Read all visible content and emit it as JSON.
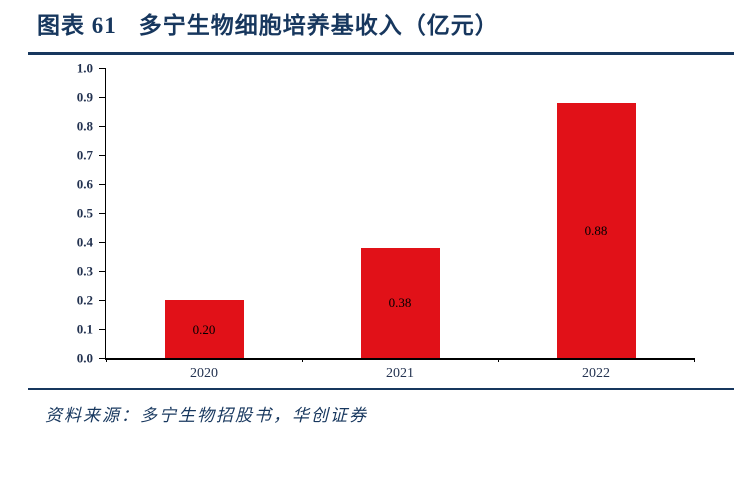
{
  "header": {
    "figure_label": "图表 61",
    "title": "多宁生物细胞培养基收入（亿元）"
  },
  "chart_data": {
    "type": "bar",
    "title": "多宁生物细胞培养基收入（亿元）",
    "categories": [
      "2020",
      "2021",
      "2022"
    ],
    "values": [
      0.2,
      0.38,
      0.88
    ],
    "data_labels": [
      "0.20",
      "0.38",
      "0.88"
    ],
    "yticks": [
      "0.0",
      "0.1",
      "0.2",
      "0.3",
      "0.4",
      "0.5",
      "0.6",
      "0.7",
      "0.8",
      "0.9",
      "1.0"
    ],
    "ylim": [
      0,
      1.0
    ],
    "xlabel": "",
    "ylabel": "",
    "grid": false,
    "legend": "none",
    "data_label_position": "center"
  },
  "footer": {
    "source": "资料来源：多宁生物招股书，华创证券"
  },
  "colors": {
    "navy": "#17375e",
    "bar_red": "#e11118",
    "axis": "#000000",
    "tick_text": "#233250",
    "bar_label": "#000000"
  }
}
